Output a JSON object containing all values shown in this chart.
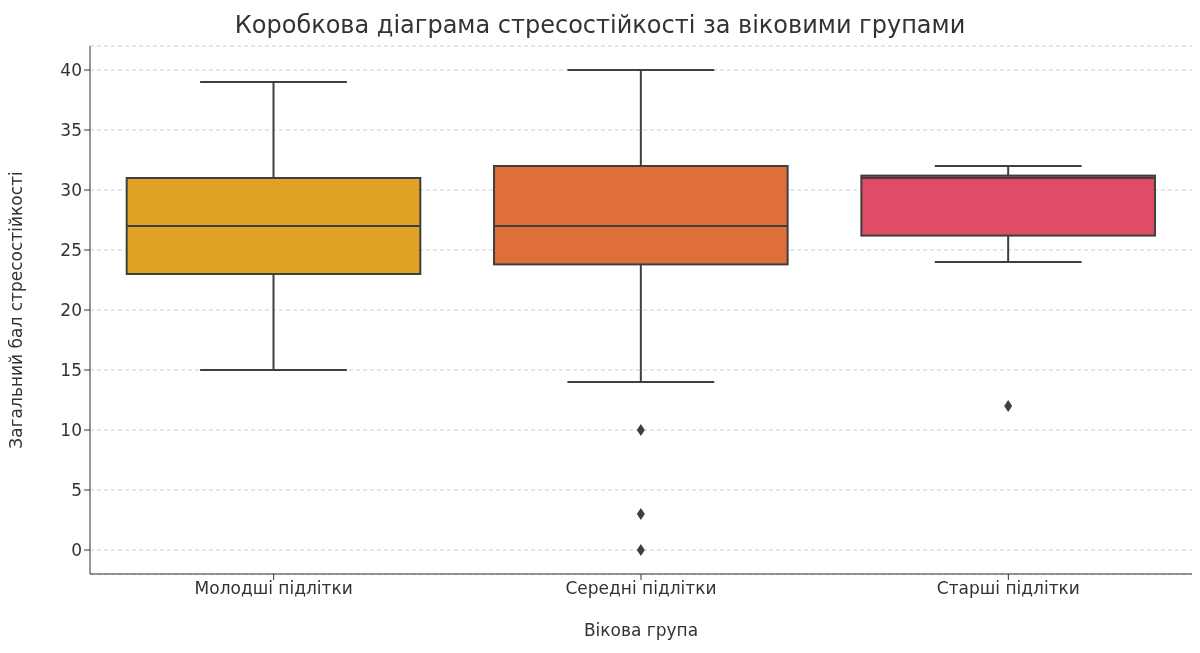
{
  "chart_data": {
    "type": "box",
    "title": "Коробкова діаграма стресостійкості за віковими групами",
    "xlabel": "Вікова група",
    "ylabel": "Загальний бал стресостійкості",
    "categories": [
      "Молодші підлітки",
      "Середні підлітки",
      "Старші підлітки"
    ],
    "colors": [
      "#e1a326",
      "#df703a",
      "#e04b66"
    ],
    "boxes": [
      {
        "low": 15,
        "q1": 23,
        "median": 27,
        "q3": 31,
        "high": 39
      },
      {
        "low": 14,
        "q1": 23.8,
        "median": 27,
        "q3": 32,
        "high": 40,
        "outliers": [
          10,
          3,
          0
        ]
      },
      {
        "low": 24,
        "q1": 26.2,
        "median": 31,
        "q3": 31.2,
        "high": 32,
        "outliers": [
          12
        ]
      }
    ],
    "ylim": [
      -2,
      42
    ],
    "yticks": [
      0,
      5,
      10,
      15,
      20,
      25,
      30,
      35,
      40
    ],
    "grid": "y",
    "marker": "diamond"
  }
}
